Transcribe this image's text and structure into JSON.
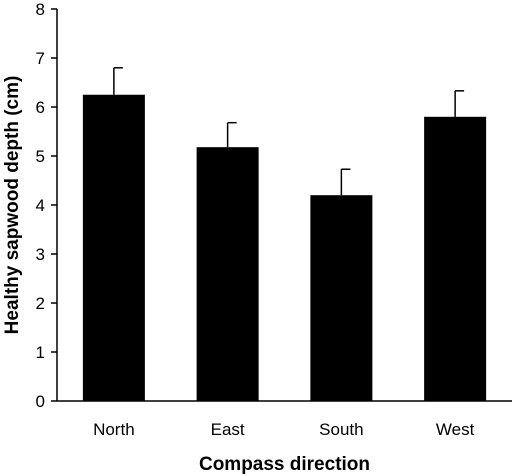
{
  "chart_data": {
    "type": "bar",
    "categories": [
      "North",
      "East",
      "South",
      "West"
    ],
    "values": [
      6.25,
      5.18,
      4.2,
      5.8
    ],
    "error": [
      0.55,
      0.5,
      0.53,
      0.53
    ],
    "xlabel": "Compass direction",
    "ylabel": "Healthy sapwood depth (cm)",
    "ylim": [
      0,
      8
    ],
    "yticks": [
      0,
      1,
      2,
      3,
      4,
      5,
      6,
      7,
      8
    ],
    "grid": false,
    "bar_color": "#000000"
  }
}
